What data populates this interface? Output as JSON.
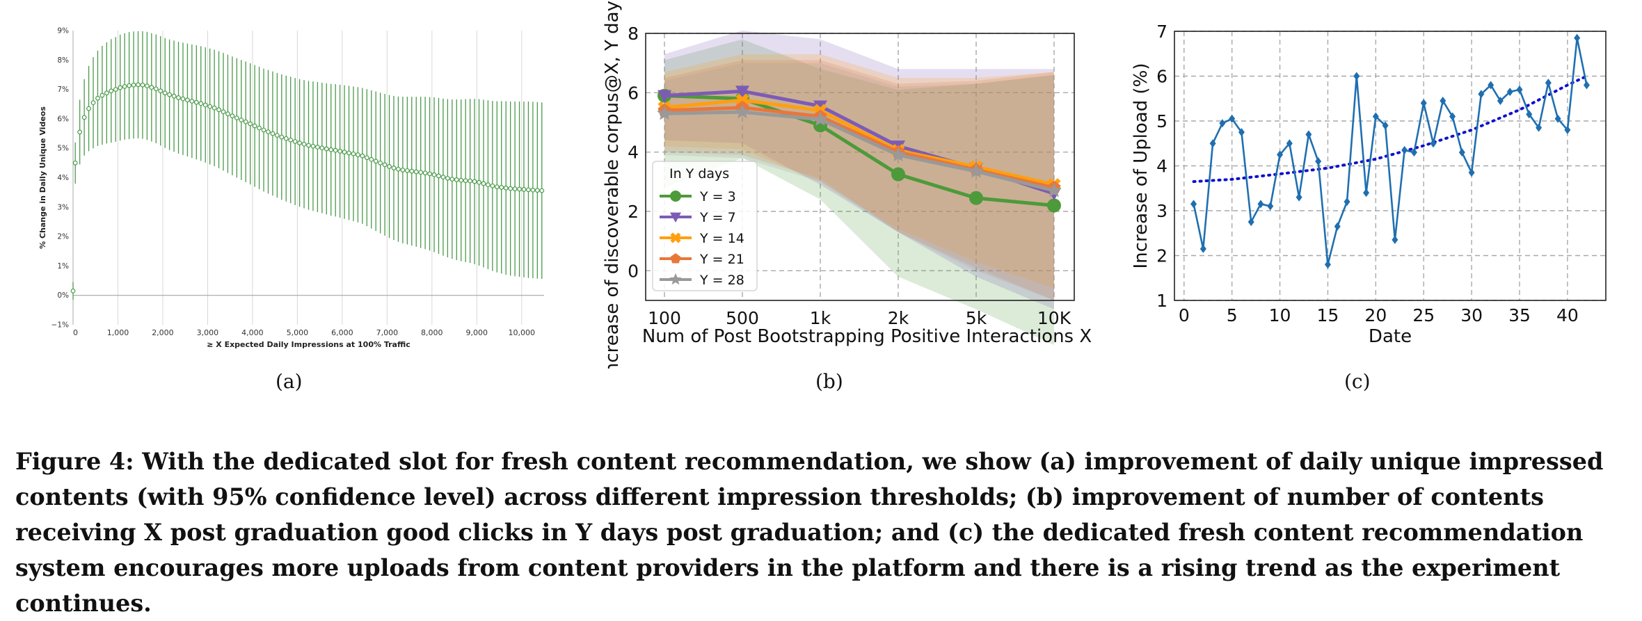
{
  "figure": {
    "sublabels": [
      "(a)",
      "(b)",
      "(c)"
    ],
    "caption": "Figure 4: With the dedicated slot for fresh content recommendation, we show (a) improvement of daily unique impressed contents (with 95% confidence level) across different impression thresholds; (b) improvement of number of contents receiving X post graduation good clicks in Y days post graduation; and (c) the dedicated fresh content recommendation system encourages more uploads from content providers in the platform and there is a rising trend as the experiment continues."
  },
  "chart_data": [
    {
      "type": "scatter",
      "panel": "(a)",
      "xlabel": "≥ X Expected Daily Impressions at 100% Traffic",
      "ylabel": "% Change in Daily Unique Videos",
      "xlim": [
        0,
        10500
      ],
      "ylim": [
        -1,
        9
      ],
      "xticks": [
        0,
        1000,
        2000,
        3000,
        4000,
        5000,
        6000,
        7000,
        8000,
        9000,
        10000
      ],
      "xtick_labels": [
        "0",
        "1,000",
        "2,000",
        "3,000",
        "4,000",
        "5,000",
        "6,000",
        "7,000",
        "8,000",
        "9,000",
        "10,000"
      ],
      "yticks": [
        -1,
        0,
        1,
        2,
        3,
        4,
        5,
        6,
        7,
        8,
        9
      ],
      "ytick_labels": [
        "−1%",
        "0%",
        "1%",
        "2%",
        "3%",
        "4%",
        "5%",
        "6%",
        "7%",
        "8%",
        "9%"
      ],
      "grid": "vertical",
      "color": "#4a9a4a",
      "error_bars": "95% confidence interval",
      "x": [
        0,
        50,
        150,
        250,
        350,
        450,
        550,
        650,
        750,
        850,
        950,
        1050,
        1150,
        1250,
        1350,
        1450,
        1550,
        1650,
        1750,
        1850,
        1950,
        2050,
        2150,
        2250,
        2350,
        2450,
        2550,
        2650,
        2750,
        2850,
        2950,
        3050,
        3150,
        3250,
        3350,
        3450,
        3550,
        3650,
        3750,
        3850,
        3950,
        4050,
        4150,
        4250,
        4350,
        4450,
        4550,
        4650,
        4750,
        4850,
        4950,
        5050,
        5150,
        5250,
        5350,
        5450,
        5550,
        5650,
        5750,
        5850,
        5950,
        6050,
        6150,
        6250,
        6350,
        6450,
        6550,
        6650,
        6750,
        6850,
        6950,
        7050,
        7150,
        7250,
        7350,
        7450,
        7550,
        7650,
        7750,
        7850,
        7950,
        8050,
        8150,
        8250,
        8350,
        8450,
        8550,
        8650,
        8750,
        8850,
        8950,
        9050,
        9150,
        9250,
        9350,
        9450,
        9550,
        9650,
        9750,
        9850,
        9950,
        10050,
        10150,
        10250,
        10350,
        10450
      ],
      "y": [
        0.15,
        4.5,
        5.55,
        6.05,
        6.35,
        6.55,
        6.7,
        6.8,
        6.88,
        6.95,
        7.0,
        7.06,
        7.1,
        7.13,
        7.15,
        7.16,
        7.15,
        7.12,
        7.07,
        7.02,
        6.95,
        6.88,
        6.82,
        6.77,
        6.72,
        6.68,
        6.64,
        6.6,
        6.56,
        6.52,
        6.47,
        6.42,
        6.37,
        6.31,
        6.24,
        6.17,
        6.1,
        6.03,
        5.96,
        5.9,
        5.83,
        5.76,
        5.69,
        5.62,
        5.56,
        5.5,
        5.44,
        5.38,
        5.33,
        5.28,
        5.23,
        5.18,
        5.14,
        5.1,
        5.07,
        5.04,
        5.01,
        4.98,
        4.95,
        4.93,
        4.9,
        4.87,
        4.84,
        4.81,
        4.78,
        4.74,
        4.68,
        4.62,
        4.56,
        4.5,
        4.44,
        4.38,
        4.33,
        4.29,
        4.26,
        4.24,
        4.22,
        4.2,
        4.18,
        4.16,
        4.13,
        4.1,
        4.06,
        4.02,
        3.98,
        3.95,
        3.93,
        3.91,
        3.9,
        3.89,
        3.87,
        3.84,
        3.8,
        3.76,
        3.72,
        3.69,
        3.67,
        3.65,
        3.63,
        3.62,
        3.61,
        3.6,
        3.59,
        3.58,
        3.57,
        3.56
      ],
      "err": [
        0.3,
        0.7,
        1.1,
        1.3,
        1.45,
        1.55,
        1.62,
        1.68,
        1.72,
        1.76,
        1.78,
        1.8,
        1.81,
        1.82,
        1.82,
        1.82,
        1.83,
        1.84,
        1.84,
        1.85,
        1.86,
        1.87,
        1.88,
        1.89,
        1.9,
        1.91,
        1.92,
        1.93,
        1.94,
        1.95,
        1.96,
        1.97,
        1.98,
        1.99,
        2.0,
        2.01,
        2.02,
        2.03,
        2.04,
        2.05,
        2.06,
        2.07,
        2.08,
        2.09,
        2.1,
        2.11,
        2.12,
        2.13,
        2.14,
        2.15,
        2.16,
        2.17,
        2.18,
        2.19,
        2.2,
        2.21,
        2.22,
        2.23,
        2.24,
        2.25,
        2.26,
        2.27,
        2.28,
        2.29,
        2.3,
        2.31,
        2.33,
        2.35,
        2.37,
        2.39,
        2.41,
        2.43,
        2.45,
        2.47,
        2.49,
        2.51,
        2.53,
        2.55,
        2.57,
        2.59,
        2.61,
        2.63,
        2.65,
        2.67,
        2.69,
        2.71,
        2.73,
        2.75,
        2.77,
        2.79,
        2.81,
        2.83,
        2.85,
        2.87,
        2.89,
        2.91,
        2.93,
        2.95,
        2.96,
        2.97,
        2.98,
        2.99,
        3.0,
        3.0,
        3.0,
        3.0
      ]
    },
    {
      "type": "line",
      "panel": "(b)",
      "xlabel": "Num of Post Bootstrapping Positive Interactions X",
      "ylabel": "Increase of discoverable corpus@X, Y days (%)",
      "categories": [
        "100",
        "500",
        "1k",
        "2k",
        "5k",
        "10K"
      ],
      "ylim": [
        -1,
        8
      ],
      "yticks": [
        0,
        2,
        4,
        6,
        8
      ],
      "grid": true,
      "legend_title": "In Y days",
      "legend_position": "lower-left",
      "bands": "shaded min/max range per series",
      "series": [
        {
          "name": "Y = 3",
          "color": "#4d9a3a",
          "marker": "circle",
          "values": [
            5.9,
            5.8,
            4.9,
            3.25,
            2.45,
            2.2
          ],
          "lower": [
            2.8,
            3.8,
            2.4,
            -0.2,
            -1.3,
            -2.5
          ],
          "upper": [
            7.1,
            7.8,
            6.8,
            6.1,
            6.3,
            6.6
          ]
        },
        {
          "name": "Y = 7",
          "color": "#7d5bb5",
          "marker": "triangle-down",
          "values": [
            5.9,
            6.05,
            5.55,
            4.2,
            3.45,
            2.6
          ],
          "lower": [
            4.4,
            4.3,
            2.9,
            1.3,
            -0.2,
            -1.3
          ],
          "upper": [
            7.3,
            8.1,
            7.8,
            6.8,
            6.8,
            6.8
          ]
        },
        {
          "name": "Y = 14",
          "color": "#ff9f0f",
          "marker": "x-thick",
          "values": [
            5.5,
            5.75,
            5.4,
            4.05,
            3.5,
            2.9
          ],
          "lower": [
            4.2,
            4.1,
            3.0,
            1.4,
            0.3,
            -0.6
          ],
          "upper": [
            6.7,
            7.3,
            7.3,
            6.5,
            6.5,
            6.7
          ]
        },
        {
          "name": "Y = 21",
          "color": "#e8773a",
          "marker": "pentagon",
          "values": [
            5.4,
            5.5,
            5.2,
            4.0,
            3.4,
            2.8
          ],
          "lower": [
            4.0,
            3.9,
            3.1,
            1.3,
            0.1,
            -1.0
          ],
          "upper": [
            6.5,
            7.1,
            7.1,
            6.3,
            6.4,
            6.7
          ]
        },
        {
          "name": "Y = 28",
          "color": "#999999",
          "marker": "star",
          "values": [
            5.3,
            5.35,
            5.1,
            3.9,
            3.35,
            2.7
          ],
          "lower": [
            3.9,
            3.8,
            3.0,
            1.3,
            0.0,
            -1.0
          ],
          "upper": [
            6.4,
            7.0,
            7.0,
            6.2,
            6.3,
            6.6
          ]
        }
      ]
    },
    {
      "type": "line",
      "panel": "(c)",
      "xlabel": "Date",
      "ylabel": "Increase of Upload (%)",
      "xlim": [
        -1,
        44
      ],
      "ylim": [
        1,
        7
      ],
      "xticks": [
        0,
        5,
        10,
        15,
        20,
        25,
        30,
        35,
        40
      ],
      "yticks": [
        1,
        2,
        3,
        4,
        5,
        6,
        7
      ],
      "grid": true,
      "series": [
        {
          "color": "#1f6fb0",
          "marker": "diamond",
          "x": [
            1,
            2,
            3,
            4,
            5,
            6,
            7,
            8,
            9,
            10,
            11,
            12,
            13,
            14,
            15,
            16,
            17,
            18,
            19,
            20,
            21,
            22,
            23,
            24,
            25,
            26,
            27,
            28,
            29,
            30,
            31,
            32,
            33,
            34,
            35,
            36,
            37,
            38,
            39,
            40,
            41,
            42
          ],
          "values": [
            3.15,
            2.15,
            4.5,
            4.95,
            5.05,
            4.75,
            2.75,
            3.15,
            3.1,
            4.25,
            4.5,
            3.3,
            4.7,
            4.1,
            1.8,
            2.65,
            3.2,
            6.0,
            3.4,
            5.1,
            4.9,
            2.35,
            4.35,
            4.3,
            5.4,
            4.5,
            5.45,
            5.1,
            4.3,
            3.85,
            5.6,
            5.8,
            5.45,
            5.65,
            5.7,
            5.15,
            4.85,
            5.85,
            5.05,
            4.8,
            6.85,
            5.8
          ]
        },
        {
          "color": "#1010cc",
          "style": "dotted-trend",
          "x": [
            1,
            5,
            10,
            15,
            20,
            25,
            30,
            35,
            40,
            42
          ],
          "values": [
            3.65,
            3.7,
            3.82,
            3.95,
            4.15,
            4.45,
            4.8,
            5.25,
            5.8,
            6.0
          ]
        }
      ]
    }
  ]
}
